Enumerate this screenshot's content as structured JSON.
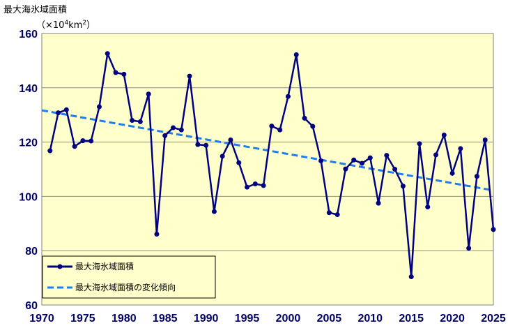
{
  "chart_data": {
    "type": "line",
    "ylabel": "最大海氷域面積",
    "yunit_prefix": "（×10",
    "yunit_exp": "4",
    "yunit_suffix": "km",
    "yunit_exp2": "2",
    "yunit_close": "）",
    "xlim": [
      1970,
      2025
    ],
    "ylim": [
      60,
      160
    ],
    "xticks": [
      1970,
      1975,
      1980,
      1985,
      1990,
      1995,
      2000,
      2005,
      2010,
      2015,
      2020,
      2025
    ],
    "yticks": [
      60,
      80,
      100,
      120,
      140,
      160
    ],
    "grid": "horizontal",
    "legend_position": "bottom-left",
    "colors": {
      "series": "#000080",
      "trend": "#1e7df0",
      "plot_bg": "#ffffcc",
      "tick_text": "#000066"
    },
    "series": [
      {
        "name": "最大海氷域面積",
        "x": [
          1971,
          1972,
          1973,
          1974,
          1975,
          1976,
          1977,
          1978,
          1979,
          1980,
          1981,
          1982,
          1983,
          1984,
          1985,
          1986,
          1987,
          1988,
          1989,
          1990,
          1991,
          1992,
          1993,
          1994,
          1995,
          1996,
          1997,
          1998,
          1999,
          2000,
          2001,
          2002,
          2003,
          2004,
          2005,
          2006,
          2007,
          2008,
          2009,
          2010,
          2011,
          2012,
          2013,
          2014,
          2015,
          2016,
          2017,
          2018,
          2019,
          2020,
          2021,
          2022,
          2023,
          2024,
          2025
        ],
        "y": [
          116.8,
          130.8,
          131.9,
          118.4,
          120.5,
          120.4,
          133,
          152.6,
          145.6,
          145,
          128,
          127.5,
          137.7,
          86.1,
          122.4,
          125.3,
          124.5,
          144.3,
          119.1,
          118.8,
          94.4,
          114.8,
          120.8,
          112.4,
          103.4,
          104.6,
          104,
          125.9,
          124.5,
          136.8,
          152.2,
          128.8,
          125.8,
          113.1,
          94,
          93.3,
          110.1,
          113.4,
          112.2,
          114.2,
          97.5,
          115.1,
          110,
          103.8,
          70.4,
          119.4,
          96.1,
          115.3,
          122.6,
          108.5,
          117.6,
          80.9,
          107.4,
          120.8,
          87.8
        ]
      },
      {
        "name": "最大海氷域面積の変化傾向",
        "x": [
          1970,
          2025
        ],
        "y": [
          131.7,
          102.2
        ]
      }
    ]
  }
}
